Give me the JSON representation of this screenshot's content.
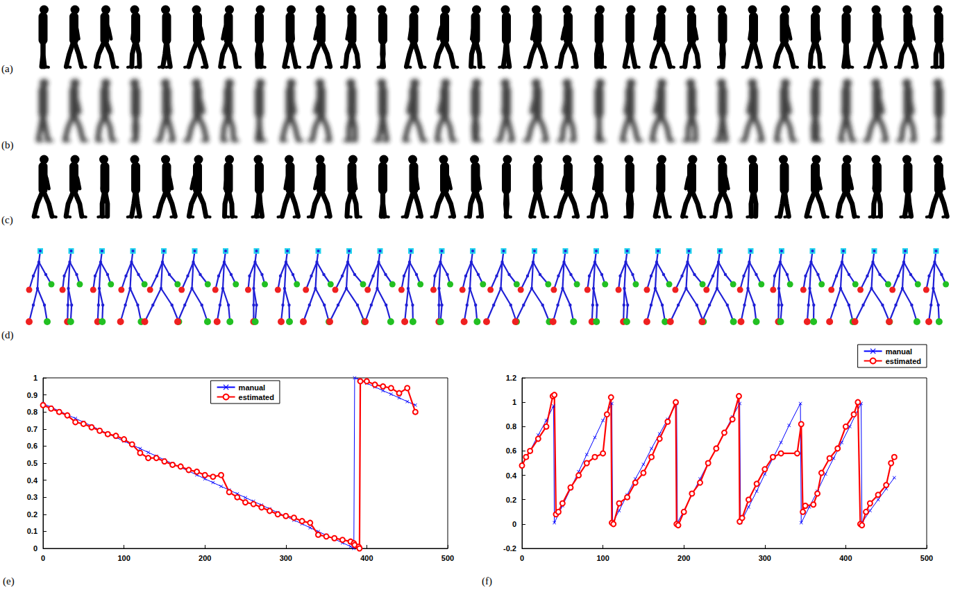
{
  "panels": [
    "(a)",
    "(b)",
    "(c)",
    "(d)"
  ],
  "chart_data": [
    {
      "type": "line",
      "annotations": [
        "(e)"
      ],
      "legend": "top",
      "grid": false,
      "xlim": [
        0,
        500
      ],
      "xticks": [
        0,
        100,
        200,
        300,
        400,
        500
      ],
      "ylim": [
        0,
        1
      ],
      "yticks": [
        0,
        0.1,
        0.2,
        0.3,
        0.4,
        0.5,
        0.6,
        0.7,
        0.8,
        0.9,
        1
      ],
      "series": [
        {
          "name": "manual",
          "color": "#0000ff",
          "marker": "x",
          "line_style": "solid",
          "x": [
            0,
            10,
            20,
            30,
            40,
            50,
            60,
            70,
            80,
            90,
            100,
            110,
            120,
            130,
            140,
            150,
            160,
            170,
            180,
            190,
            200,
            210,
            220,
            230,
            240,
            250,
            260,
            270,
            280,
            290,
            300,
            310,
            320,
            330,
            340,
            350,
            360,
            370,
            380,
            384,
            385,
            390,
            391,
            392,
            400,
            410,
            420,
            430,
            440,
            450,
            460
          ],
          "values": [
            0.85,
            0.828,
            0.806,
            0.784,
            0.762,
            0.74,
            0.718,
            0.695,
            0.673,
            0.651,
            0.629,
            0.607,
            0.585,
            0.563,
            0.541,
            0.519,
            0.497,
            0.475,
            0.453,
            0.431,
            0.408,
            0.386,
            0.364,
            0.342,
            0.32,
            0.298,
            0.276,
            0.254,
            0.232,
            0.21,
            0.188,
            0.166,
            0.144,
            0.121,
            0.099,
            0.077,
            0.055,
            0.033,
            0.011,
            0.0,
            1.0,
            0.99,
            0.987,
            0.985,
            0.968,
            0.947,
            0.925,
            0.904,
            0.883,
            0.861,
            0.84
          ]
        },
        {
          "name": "estimated",
          "color": "#ff0000",
          "marker": "o",
          "line_style": "solid",
          "x": [
            0,
            10,
            20,
            30,
            40,
            50,
            60,
            70,
            80,
            90,
            100,
            110,
            120,
            130,
            140,
            150,
            160,
            170,
            180,
            190,
            200,
            210,
            220,
            230,
            240,
            250,
            260,
            270,
            280,
            290,
            300,
            310,
            320,
            330,
            340,
            350,
            360,
            370,
            380,
            384,
            385,
            390,
            391,
            392,
            400,
            410,
            420,
            430,
            440,
            450,
            460
          ],
          "values": [
            0.84,
            0.82,
            0.8,
            0.78,
            0.74,
            0.73,
            0.71,
            0.69,
            0.67,
            0.66,
            0.64,
            0.61,
            0.56,
            0.53,
            0.53,
            0.51,
            0.49,
            0.48,
            0.46,
            0.45,
            0.43,
            0.42,
            0.43,
            0.33,
            0.3,
            0.27,
            0.26,
            0.24,
            0.22,
            0.2,
            0.19,
            0.18,
            0.16,
            0.15,
            0.08,
            0.07,
            0.06,
            0.05,
            0.04,
            0.03,
            0.02,
            0.01,
            0.0,
            0.98,
            0.98,
            0.96,
            0.95,
            0.94,
            0.91,
            0.94,
            0.8
          ]
        }
      ]
    },
    {
      "type": "line",
      "annotations": [
        "(f)"
      ],
      "legend": "above-right",
      "grid": false,
      "xlim": [
        0,
        500
      ],
      "xticks": [
        0,
        100,
        200,
        300,
        400,
        500
      ],
      "ylim": [
        -0.2,
        1.2
      ],
      "yticks": [
        -0.2,
        0,
        0.2,
        0.4,
        0.6,
        0.8,
        1,
        1.2
      ],
      "series": [
        {
          "name": "manual",
          "color": "#0000ff",
          "marker": "x",
          "line_style": "solid",
          "x": [
            0,
            10,
            20,
            30,
            39,
            40,
            50,
            60,
            70,
            80,
            90,
            100,
            111,
            112,
            120,
            130,
            140,
            150,
            160,
            170,
            180,
            191,
            192,
            200,
            210,
            220,
            230,
            240,
            250,
            260,
            269,
            270,
            280,
            290,
            300,
            310,
            320,
            330,
            344,
            345,
            355,
            365,
            375,
            385,
            395,
            405,
            419,
            420,
            430,
            440,
            450,
            460
          ],
          "values": [
            0.48,
            0.6,
            0.73,
            0.85,
            0.97,
            0.01,
            0.15,
            0.29,
            0.43,
            0.57,
            0.71,
            0.85,
            0.99,
            0.01,
            0.11,
            0.24,
            0.37,
            0.49,
            0.62,
            0.74,
            0.86,
            0.99,
            0.01,
            0.11,
            0.24,
            0.37,
            0.5,
            0.62,
            0.75,
            0.88,
            0.99,
            0.01,
            0.14,
            0.27,
            0.41,
            0.54,
            0.67,
            0.81,
            0.99,
            0.01,
            0.14,
            0.27,
            0.41,
            0.54,
            0.67,
            0.8,
            0.99,
            0.01,
            0.11,
            0.2,
            0.29,
            0.38
          ]
        },
        {
          "name": "estimated",
          "color": "#ff0000",
          "marker": "o",
          "line_style": "solid",
          "x": [
            0,
            5,
            10,
            20,
            30,
            38,
            40,
            42,
            45,
            50,
            60,
            70,
            80,
            90,
            100,
            105,
            110,
            111,
            113,
            120,
            130,
            140,
            150,
            160,
            170,
            180,
            190,
            191,
            193,
            200,
            210,
            220,
            230,
            240,
            250,
            260,
            268,
            269,
            272,
            280,
            290,
            300,
            310,
            320,
            340,
            345,
            347,
            350,
            360,
            365,
            370,
            380,
            390,
            400,
            410,
            415,
            418,
            420,
            425,
            430,
            440,
            450,
            456,
            460
          ],
          "values": [
            0.48,
            0.55,
            0.6,
            0.7,
            0.8,
            1.05,
            1.06,
            0.08,
            0.1,
            0.17,
            0.3,
            0.4,
            0.5,
            0.55,
            0.58,
            0.9,
            1.04,
            0.01,
            0.0,
            0.17,
            0.22,
            0.34,
            0.42,
            0.55,
            0.7,
            0.84,
            1.0,
            0.0,
            -0.01,
            0.1,
            0.25,
            0.34,
            0.5,
            0.62,
            0.75,
            0.86,
            1.05,
            0.02,
            0.05,
            0.2,
            0.33,
            0.45,
            0.55,
            0.58,
            0.58,
            0.82,
            0.1,
            0.15,
            0.16,
            0.25,
            0.42,
            0.54,
            0.62,
            0.8,
            0.9,
            1.0,
            0.0,
            -0.01,
            0.1,
            0.17,
            0.24,
            0.32,
            0.5,
            0.55
          ]
        }
      ]
    }
  ]
}
